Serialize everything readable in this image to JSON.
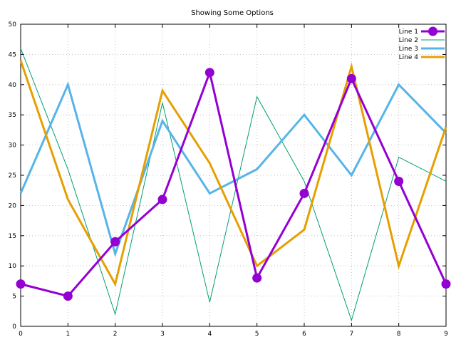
{
  "chart_data": {
    "type": "line",
    "title": "Showing Some Options",
    "xlabel": "",
    "ylabel": "",
    "xlim": [
      0,
      9
    ],
    "ylim": [
      0,
      50
    ],
    "x_ticks": [
      0,
      1,
      2,
      3,
      4,
      5,
      6,
      7,
      8,
      9
    ],
    "y_ticks": [
      0,
      5,
      10,
      15,
      20,
      25,
      30,
      35,
      40,
      45,
      50
    ],
    "grid": true,
    "legend_position": "top-right",
    "x": [
      0,
      1,
      2,
      3,
      4,
      5,
      6,
      7,
      8,
      9
    ],
    "series": [
      {
        "name": "Line 1",
        "values": [
          7,
          5,
          14,
          21,
          42,
          8,
          22,
          41,
          24,
          7
        ],
        "color": "#9400d3",
        "markers": true
      },
      {
        "name": "Line 2",
        "values": [
          46,
          26,
          2,
          37,
          4,
          38,
          24,
          1,
          28,
          24
        ],
        "color": "#009e73",
        "markers": false
      },
      {
        "name": "Line 3",
        "values": [
          22,
          40,
          12,
          34,
          22,
          26,
          35,
          25,
          40,
          32
        ],
        "color": "#56b4e9",
        "markers": false
      },
      {
        "name": "Line 4",
        "values": [
          44,
          21,
          7,
          39,
          27,
          10,
          16,
          43,
          10,
          33
        ],
        "color": "#e69f00",
        "markers": false
      }
    ]
  }
}
